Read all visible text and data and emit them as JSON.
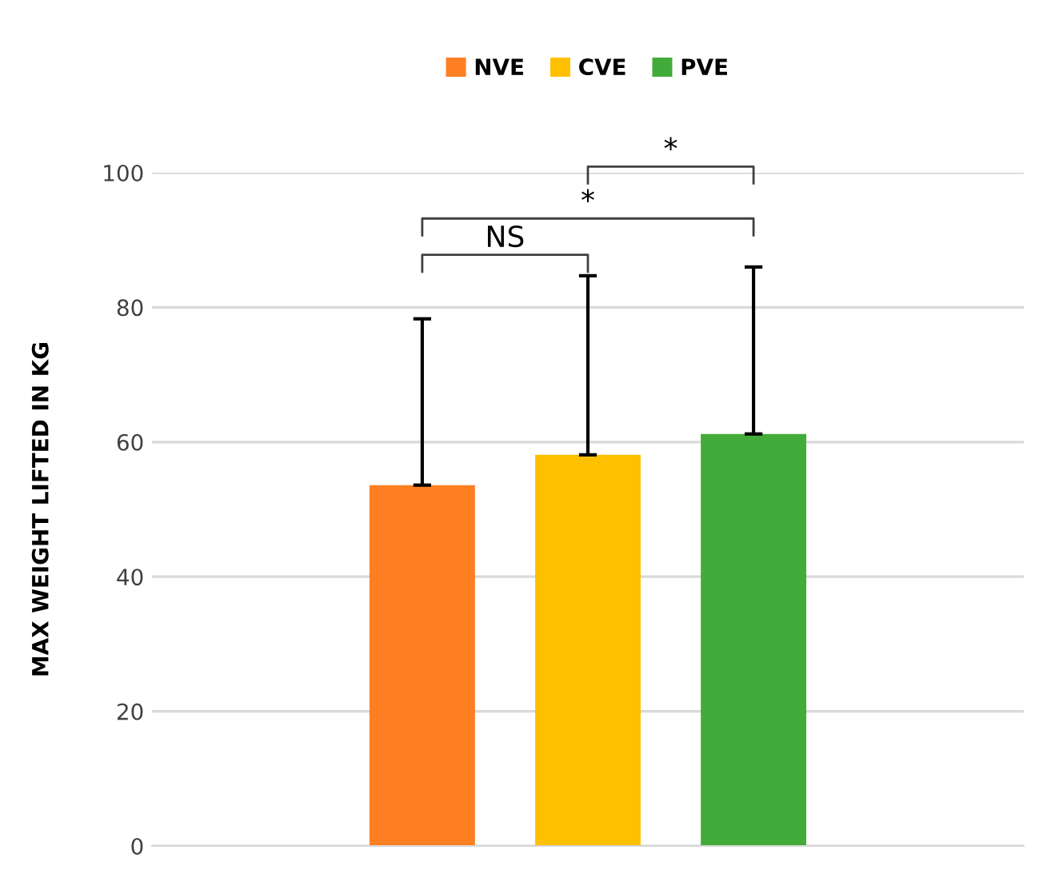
{
  "chart_data": {
    "type": "bar",
    "ylabel": "MAX WEIGHT LIFTED IN KG",
    "categories": [
      null
    ],
    "series": [
      {
        "name": "NVE",
        "color": "#fe7f22",
        "values": [
          53.6
        ],
        "errors": [
          [
            53.6,
            78.3
          ]
        ]
      },
      {
        "name": "CVE",
        "color": "#ffc000",
        "values": [
          58.1
        ],
        "errors": [
          [
            58.1,
            84.7
          ]
        ]
      },
      {
        "name": "PVE",
        "color": "#43ab3a",
        "values": [
          61.2
        ],
        "errors": [
          [
            61.2,
            86.0
          ]
        ]
      }
    ],
    "ylim": [
      0,
      100
    ],
    "yticks": [
      0,
      20,
      40,
      60,
      80,
      100
    ],
    "grid": "y",
    "legend": "top",
    "annotations": [
      "NS",
      "*",
      "*"
    ]
  }
}
